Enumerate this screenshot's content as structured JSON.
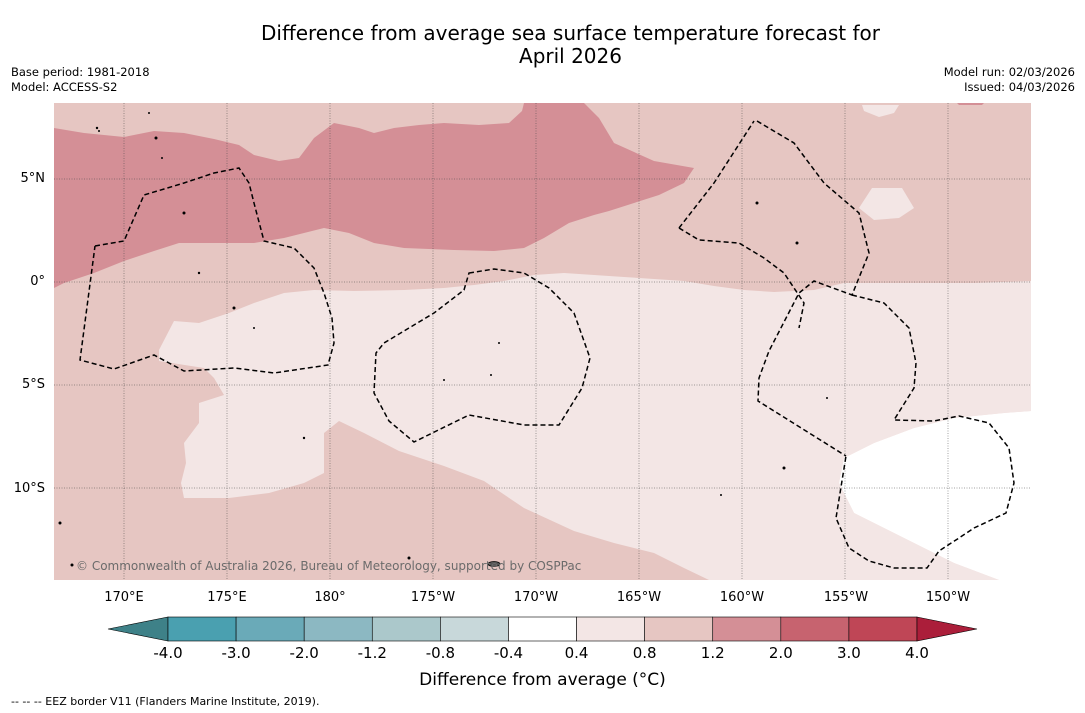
{
  "title_line1": "Difference from average sea surface temperature forecast for",
  "title_line2": "April 2026",
  "base_period": "Base period: 1981-2018",
  "model": "Model: ACCESS-S2",
  "model_run": "Model run: 02/03/2026",
  "issued": "Issued: 04/03/2026",
  "lat_labels": [
    "5°N",
    "0°",
    "5°S",
    "10°S"
  ],
  "lon_labels": [
    "170°E",
    "175°E",
    "180°",
    "175°W",
    "170°W",
    "165°W",
    "160°W",
    "155°W",
    "150°W"
  ],
  "copyright": "© Commonwealth of Australia 2026, Bureau of Meteorology, supported by COSPPac",
  "colorbar": {
    "tick_labels": [
      "-4.0",
      "-3.0",
      "-2.0",
      "-1.2",
      "-0.8",
      "-0.4",
      "0.4",
      "0.8",
      "1.2",
      "2.0",
      "3.0",
      "4.0"
    ],
    "colors": {
      "below_min": "#3e8188",
      "bins": [
        "#4aa0b0",
        "#6aaab8",
        "#8cb8c2",
        "#abc8cb",
        "#c8d8da",
        "#ffffff",
        "#f3e6e5",
        "#e6c6c2",
        "#d48f96",
        "#c7636f",
        "#bf4656"
      ],
      "above_max": "#ab1e3a"
    },
    "title": "Difference from average (°C)"
  },
  "map_colors": {
    "bin_0.4_0.8": "#f3e6e5",
    "bin_0.8_1.2": "#e6c6c2",
    "bin_1.2_2.0": "#d48f96",
    "bin_-0.4_0.4": "#ffffff"
  },
  "footnote": "--  --  -- EEZ border V11 (Flanders Marine Institute, 2019)."
}
